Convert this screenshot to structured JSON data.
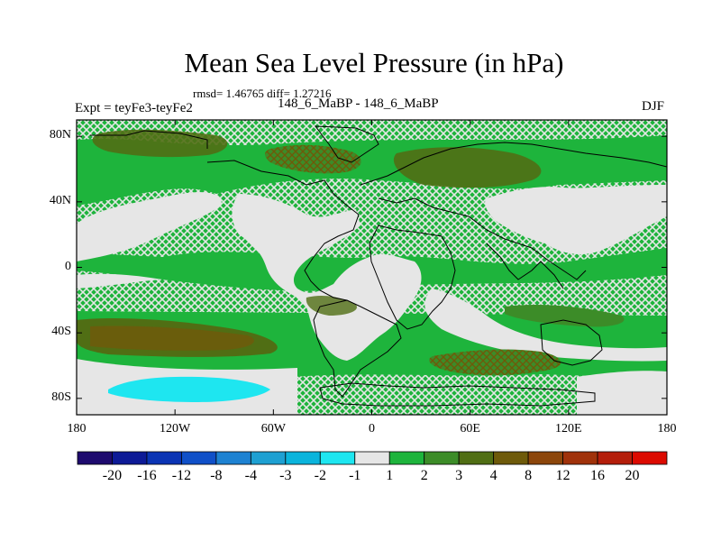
{
  "title": "Mean Sea Level Pressure (in hPa)",
  "stats_text": "rmsd= 1.46765 diff= 1.27216",
  "experiment_label": "Expt = teyFe3-teyFe2",
  "center_label": "148_6_MaBP - 148_6_MaBP",
  "season_label": "DJF",
  "map": {
    "lon_range": [
      -180,
      180
    ],
    "lat_range": [
      -90,
      90
    ],
    "x_ticks": [
      {
        "value": -180,
        "label": "180"
      },
      {
        "value": -120,
        "label": "120W"
      },
      {
        "value": -60,
        "label": "60W"
      },
      {
        "value": 0,
        "label": "0"
      },
      {
        "value": 60,
        "label": "60E"
      },
      {
        "value": 120,
        "label": "120E"
      },
      {
        "value": 180,
        "label": "180"
      }
    ],
    "y_ticks": [
      {
        "value": 80,
        "label": "80N"
      },
      {
        "value": 40,
        "label": "40N"
      },
      {
        "value": 0,
        "label": "0"
      },
      {
        "value": -40,
        "label": "40S"
      },
      {
        "value": -80,
        "label": "80S"
      }
    ]
  },
  "colorbar": {
    "colors": [
      "#1e0a6e",
      "#0d1a96",
      "#0a34b4",
      "#1050c8",
      "#1e82d2",
      "#1ea0d2",
      "#0ab4dc",
      "#1ee6f0",
      "#e6e6e6",
      "#1eb43c",
      "#3c8c28",
      "#506e14",
      "#6e5a0a",
      "#8c460a",
      "#a0320a",
      "#b41e0a",
      "#dc0a00"
    ],
    "labels": [
      "-20",
      "-16",
      "-12",
      "-8",
      "-4",
      "-3",
      "-2",
      "-1",
      "1",
      "2",
      "3",
      "4",
      "8",
      "12",
      "16",
      "20"
    ]
  }
}
